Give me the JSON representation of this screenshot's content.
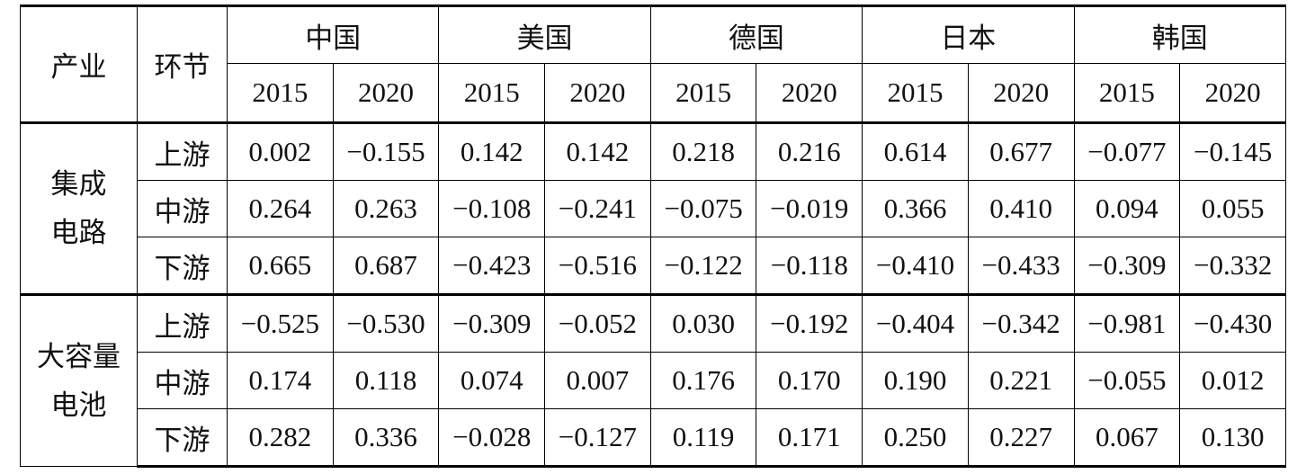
{
  "header": {
    "industry": "产业",
    "stage": "环节",
    "countries": [
      {
        "name": "中国",
        "years": [
          "2015",
          "2020"
        ]
      },
      {
        "name": "美国",
        "years": [
          "2015",
          "2020"
        ]
      },
      {
        "name": "德国",
        "years": [
          "2015",
          "2020"
        ]
      },
      {
        "name": "日本",
        "years": [
          "2015",
          "2020"
        ]
      },
      {
        "name": "韩国",
        "years": [
          "2015",
          "2020"
        ]
      }
    ]
  },
  "groups": [
    {
      "industry_lines": [
        "集成",
        "电路"
      ],
      "rows": [
        {
          "stage": "上游",
          "values": [
            "0.002",
            "−0.155",
            "0.142",
            "0.142",
            "0.218",
            "0.216",
            "0.614",
            "0.677",
            "−0.077",
            "−0.145"
          ]
        },
        {
          "stage": "中游",
          "values": [
            "0.264",
            "0.263",
            "−0.108",
            "−0.241",
            "−0.075",
            "−0.019",
            "0.366",
            "0.410",
            "0.094",
            "0.055"
          ]
        },
        {
          "stage": "下游",
          "values": [
            "0.665",
            "0.687",
            "−0.423",
            "−0.516",
            "−0.122",
            "−0.118",
            "−0.410",
            "−0.433",
            "−0.309",
            "−0.332"
          ]
        }
      ]
    },
    {
      "industry_lines": [
        "大容量",
        "电池"
      ],
      "rows": [
        {
          "stage": "上游",
          "values": [
            "−0.525",
            "−0.530",
            "−0.309",
            "−0.052",
            "0.030",
            "−0.192",
            "−0.404",
            "−0.342",
            "−0.981",
            "−0.430"
          ]
        },
        {
          "stage": "中游",
          "values": [
            "0.174",
            "0.118",
            "0.074",
            "0.007",
            "0.176",
            "0.170",
            "0.190",
            "0.221",
            "−0.055",
            "0.012"
          ]
        },
        {
          "stage": "下游",
          "values": [
            "0.282",
            "0.336",
            "−0.028",
            "−0.127",
            "0.119",
            "0.171",
            "0.250",
            "0.227",
            "0.067",
            "0.130"
          ]
        }
      ]
    }
  ]
}
